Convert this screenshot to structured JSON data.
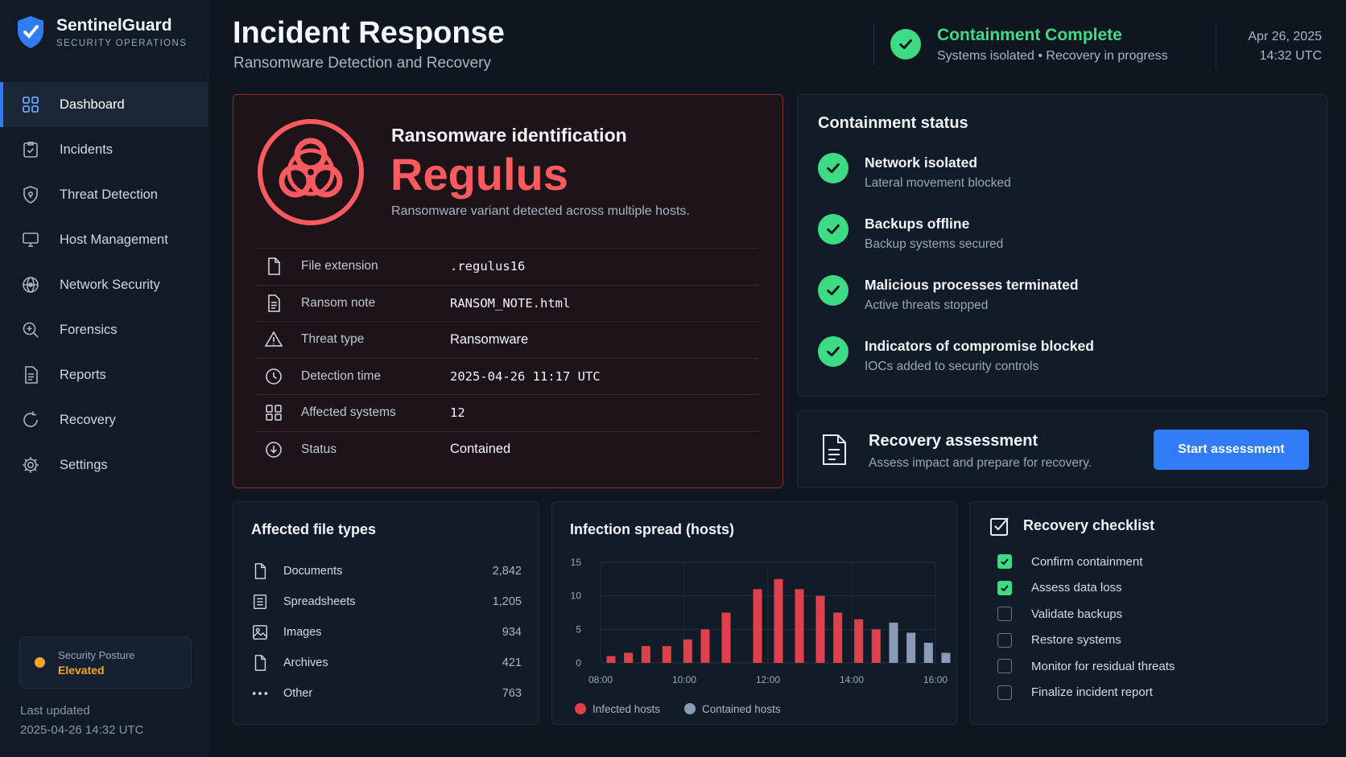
{
  "brand": {
    "name": "SentinelGuard",
    "subtitle": "SECURITY OPERATIONS"
  },
  "sidebar": {
    "items": [
      {
        "label": "Dashboard",
        "icon": "grid-icon",
        "active": true
      },
      {
        "label": "Incidents",
        "icon": "clipboard-check-icon"
      },
      {
        "label": "Threat Detection",
        "icon": "shield-icon"
      },
      {
        "label": "Host Management",
        "icon": "monitor-icon"
      },
      {
        "label": "Network Security",
        "icon": "globe-icon"
      },
      {
        "label": "Forensics",
        "icon": "magnifier-icon"
      },
      {
        "label": "Reports",
        "icon": "document-icon"
      },
      {
        "label": "Recovery",
        "icon": "refresh-icon"
      },
      {
        "label": "Settings",
        "icon": "gear-icon"
      }
    ],
    "posture": {
      "label": "Security Posture",
      "value": "Elevated",
      "color": "#f5a623"
    },
    "last_updated_label": "Last updated",
    "last_updated_value": "2025-04-26 14:32 UTC"
  },
  "header": {
    "title": "Incident Response",
    "subtitle": "Ransomware Detection and Recovery",
    "status_title": "Containment Complete",
    "status_sub": "Systems isolated • Recovery in progress",
    "date": "Apr 26, 2025",
    "time": "14:32 UTC"
  },
  "ransomware": {
    "label": "Ransomware identification",
    "name": "Regulus",
    "description": "Ransomware variant detected across multiple hosts.",
    "details": [
      {
        "key": "File extension",
        "value": ".regulus16",
        "icon": "file-icon"
      },
      {
        "key": "Ransom note",
        "value": "RANSOM_NOTE.html",
        "icon": "note-icon"
      },
      {
        "key": "Threat type",
        "value": "Ransomware",
        "icon": "warning-icon"
      },
      {
        "key": "Detection time",
        "value": "2025-04-26 11:17 UTC",
        "icon": "clock-icon"
      },
      {
        "key": "Affected systems",
        "value": "12",
        "icon": "systems-icon"
      },
      {
        "key": "Status",
        "value": "Contained",
        "icon": "download-circle-icon"
      }
    ]
  },
  "containment": {
    "title": "Containment status",
    "items": [
      {
        "title": "Network isolated",
        "sub": "Lateral movement blocked"
      },
      {
        "title": "Backups offline",
        "sub": "Backup systems secured"
      },
      {
        "title": "Malicious processes terminated",
        "sub": "Active threats stopped"
      },
      {
        "title": "Indicators of compromise blocked",
        "sub": "IOCs added to security controls"
      }
    ]
  },
  "recovery_assessment": {
    "title": "Recovery assessment",
    "subtitle": "Assess impact and prepare for recovery.",
    "button": "Start assessment"
  },
  "file_types": {
    "title": "Affected file types",
    "items": [
      {
        "name": "Documents",
        "count": "2,842",
        "icon": "file-icon"
      },
      {
        "name": "Spreadsheets",
        "count": "1,205",
        "icon": "spreadsheet-icon"
      },
      {
        "name": "Images",
        "count": "934",
        "icon": "image-icon"
      },
      {
        "name": "Archives",
        "count": "421",
        "icon": "archive-icon"
      },
      {
        "name": "Other",
        "count": "763",
        "icon": "more-icon"
      }
    ]
  },
  "chart_data": {
    "type": "bar",
    "title": "Infection spread (hosts)",
    "x_ticks": [
      "08:00",
      "10:00",
      "12:00",
      "14:00",
      "16:00"
    ],
    "y_ticks": [
      "0",
      "5",
      "10",
      "15"
    ],
    "ylim": [
      0,
      15
    ],
    "xlim_hours": [
      8,
      16
    ],
    "legend_position": "bottom-left",
    "series": [
      {
        "name": "Infected hosts",
        "color": "#e0404c",
        "x": [
          "08:15",
          "08:40",
          "09:05",
          "09:35",
          "10:05",
          "10:30",
          "11:00",
          "11:45",
          "12:15",
          "12:45",
          "13:15",
          "13:40",
          "14:10",
          "14:35"
        ],
        "values": [
          1,
          1.5,
          2.5,
          2.5,
          3.5,
          5,
          7.5,
          11,
          12.5,
          11,
          10,
          7.5,
          6.5,
          5
        ]
      },
      {
        "name": "Contained hosts",
        "color": "#8a9bb8",
        "x": [
          "15:00",
          "15:25",
          "15:50",
          "16:15"
        ],
        "values": [
          6,
          4.5,
          3,
          1.5
        ]
      }
    ]
  },
  "checklist": {
    "title": "Recovery checklist",
    "items": [
      {
        "label": "Confirm containment",
        "checked": true
      },
      {
        "label": "Assess data loss",
        "checked": true
      },
      {
        "label": "Validate backups",
        "checked": false
      },
      {
        "label": "Restore systems",
        "checked": false
      },
      {
        "label": "Monitor for residual threats",
        "checked": false
      },
      {
        "label": "Finalize incident report",
        "checked": false
      }
    ]
  },
  "colors": {
    "accent": "#2f7cf6",
    "success": "#3ddc84",
    "danger": "#ff5a5f"
  }
}
